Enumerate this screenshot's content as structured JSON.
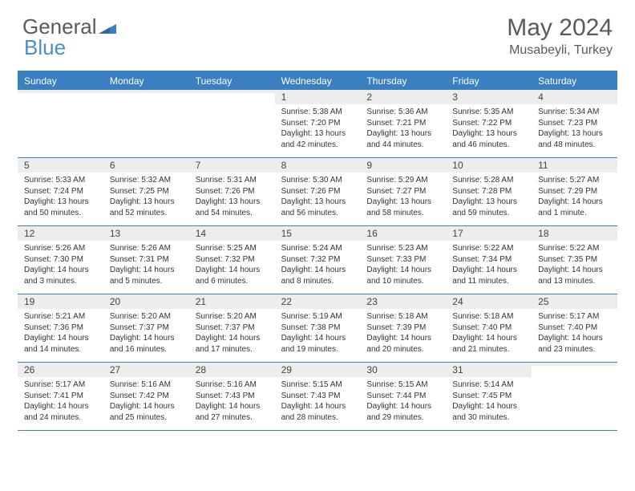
{
  "brand": {
    "part1": "General",
    "part2": "Blue"
  },
  "title": "May 2024",
  "location": "Musabeyli, Turkey",
  "colors": {
    "header_bg": "#3a7fbf",
    "header_text": "#ffffff",
    "daynum_bg": "#ededed",
    "border": "#3a7fbf",
    "body_text": "#333333",
    "title_text": "#5a5a5a"
  },
  "day_names": [
    "Sunday",
    "Monday",
    "Tuesday",
    "Wednesday",
    "Thursday",
    "Friday",
    "Saturday"
  ],
  "weeks": [
    [
      {
        "n": "",
        "sr": "",
        "ss": "",
        "dl": ""
      },
      {
        "n": "",
        "sr": "",
        "ss": "",
        "dl": ""
      },
      {
        "n": "",
        "sr": "",
        "ss": "",
        "dl": ""
      },
      {
        "n": "1",
        "sr": "Sunrise: 5:38 AM",
        "ss": "Sunset: 7:20 PM",
        "dl": "Daylight: 13 hours and 42 minutes."
      },
      {
        "n": "2",
        "sr": "Sunrise: 5:36 AM",
        "ss": "Sunset: 7:21 PM",
        "dl": "Daylight: 13 hours and 44 minutes."
      },
      {
        "n": "3",
        "sr": "Sunrise: 5:35 AM",
        "ss": "Sunset: 7:22 PM",
        "dl": "Daylight: 13 hours and 46 minutes."
      },
      {
        "n": "4",
        "sr": "Sunrise: 5:34 AM",
        "ss": "Sunset: 7:23 PM",
        "dl": "Daylight: 13 hours and 48 minutes."
      }
    ],
    [
      {
        "n": "5",
        "sr": "Sunrise: 5:33 AM",
        "ss": "Sunset: 7:24 PM",
        "dl": "Daylight: 13 hours and 50 minutes."
      },
      {
        "n": "6",
        "sr": "Sunrise: 5:32 AM",
        "ss": "Sunset: 7:25 PM",
        "dl": "Daylight: 13 hours and 52 minutes."
      },
      {
        "n": "7",
        "sr": "Sunrise: 5:31 AM",
        "ss": "Sunset: 7:26 PM",
        "dl": "Daylight: 13 hours and 54 minutes."
      },
      {
        "n": "8",
        "sr": "Sunrise: 5:30 AM",
        "ss": "Sunset: 7:26 PM",
        "dl": "Daylight: 13 hours and 56 minutes."
      },
      {
        "n": "9",
        "sr": "Sunrise: 5:29 AM",
        "ss": "Sunset: 7:27 PM",
        "dl": "Daylight: 13 hours and 58 minutes."
      },
      {
        "n": "10",
        "sr": "Sunrise: 5:28 AM",
        "ss": "Sunset: 7:28 PM",
        "dl": "Daylight: 13 hours and 59 minutes."
      },
      {
        "n": "11",
        "sr": "Sunrise: 5:27 AM",
        "ss": "Sunset: 7:29 PM",
        "dl": "Daylight: 14 hours and 1 minute."
      }
    ],
    [
      {
        "n": "12",
        "sr": "Sunrise: 5:26 AM",
        "ss": "Sunset: 7:30 PM",
        "dl": "Daylight: 14 hours and 3 minutes."
      },
      {
        "n": "13",
        "sr": "Sunrise: 5:26 AM",
        "ss": "Sunset: 7:31 PM",
        "dl": "Daylight: 14 hours and 5 minutes."
      },
      {
        "n": "14",
        "sr": "Sunrise: 5:25 AM",
        "ss": "Sunset: 7:32 PM",
        "dl": "Daylight: 14 hours and 6 minutes."
      },
      {
        "n": "15",
        "sr": "Sunrise: 5:24 AM",
        "ss": "Sunset: 7:32 PM",
        "dl": "Daylight: 14 hours and 8 minutes."
      },
      {
        "n": "16",
        "sr": "Sunrise: 5:23 AM",
        "ss": "Sunset: 7:33 PM",
        "dl": "Daylight: 14 hours and 10 minutes."
      },
      {
        "n": "17",
        "sr": "Sunrise: 5:22 AM",
        "ss": "Sunset: 7:34 PM",
        "dl": "Daylight: 14 hours and 11 minutes."
      },
      {
        "n": "18",
        "sr": "Sunrise: 5:22 AM",
        "ss": "Sunset: 7:35 PM",
        "dl": "Daylight: 14 hours and 13 minutes."
      }
    ],
    [
      {
        "n": "19",
        "sr": "Sunrise: 5:21 AM",
        "ss": "Sunset: 7:36 PM",
        "dl": "Daylight: 14 hours and 14 minutes."
      },
      {
        "n": "20",
        "sr": "Sunrise: 5:20 AM",
        "ss": "Sunset: 7:37 PM",
        "dl": "Daylight: 14 hours and 16 minutes."
      },
      {
        "n": "21",
        "sr": "Sunrise: 5:20 AM",
        "ss": "Sunset: 7:37 PM",
        "dl": "Daylight: 14 hours and 17 minutes."
      },
      {
        "n": "22",
        "sr": "Sunrise: 5:19 AM",
        "ss": "Sunset: 7:38 PM",
        "dl": "Daylight: 14 hours and 19 minutes."
      },
      {
        "n": "23",
        "sr": "Sunrise: 5:18 AM",
        "ss": "Sunset: 7:39 PM",
        "dl": "Daylight: 14 hours and 20 minutes."
      },
      {
        "n": "24",
        "sr": "Sunrise: 5:18 AM",
        "ss": "Sunset: 7:40 PM",
        "dl": "Daylight: 14 hours and 21 minutes."
      },
      {
        "n": "25",
        "sr": "Sunrise: 5:17 AM",
        "ss": "Sunset: 7:40 PM",
        "dl": "Daylight: 14 hours and 23 minutes."
      }
    ],
    [
      {
        "n": "26",
        "sr": "Sunrise: 5:17 AM",
        "ss": "Sunset: 7:41 PM",
        "dl": "Daylight: 14 hours and 24 minutes."
      },
      {
        "n": "27",
        "sr": "Sunrise: 5:16 AM",
        "ss": "Sunset: 7:42 PM",
        "dl": "Daylight: 14 hours and 25 minutes."
      },
      {
        "n": "28",
        "sr": "Sunrise: 5:16 AM",
        "ss": "Sunset: 7:43 PM",
        "dl": "Daylight: 14 hours and 27 minutes."
      },
      {
        "n": "29",
        "sr": "Sunrise: 5:15 AM",
        "ss": "Sunset: 7:43 PM",
        "dl": "Daylight: 14 hours and 28 minutes."
      },
      {
        "n": "30",
        "sr": "Sunrise: 5:15 AM",
        "ss": "Sunset: 7:44 PM",
        "dl": "Daylight: 14 hours and 29 minutes."
      },
      {
        "n": "31",
        "sr": "Sunrise: 5:14 AM",
        "ss": "Sunset: 7:45 PM",
        "dl": "Daylight: 14 hours and 30 minutes."
      },
      {
        "n": "",
        "sr": "",
        "ss": "",
        "dl": ""
      }
    ]
  ]
}
